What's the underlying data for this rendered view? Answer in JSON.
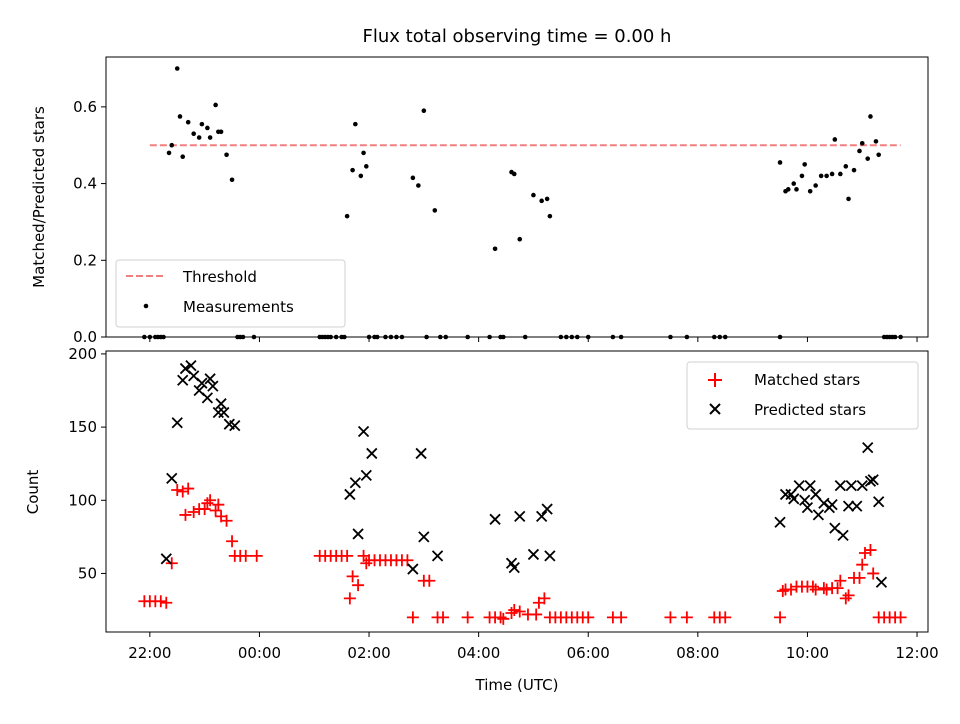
{
  "title": "Flux total observing time = 0.00 h",
  "colors": {
    "threshold": "#f08080",
    "measurements": "#000000",
    "matched": "#ff0000",
    "predicted": "#000000"
  },
  "chart_data": [
    {
      "type": "scatter",
      "panel": "top",
      "ylabel": "Matched/Predicted stars",
      "ylim": [
        0,
        0.73
      ],
      "yticks": [
        0.0,
        0.2,
        0.4,
        0.6
      ],
      "ytick_labels": [
        "0.0",
        "0.2",
        "0.4",
        "0.6"
      ],
      "grid": false,
      "legend": "lower-left",
      "threshold": {
        "name": "Threshold",
        "value": 0.5,
        "x": [
          -2.0,
          11.7
        ]
      },
      "series": [
        {
          "name": "Measurements",
          "points": [
            [
              -2.1,
              0
            ],
            [
              -2.0,
              0
            ],
            [
              -1.9,
              0
            ],
            [
              -1.85,
              0
            ],
            [
              -1.8,
              0
            ],
            [
              -1.75,
              0
            ],
            [
              -1.65,
              0.48
            ],
            [
              -1.6,
              0.5
            ],
            [
              -1.5,
              0.7
            ],
            [
              -1.45,
              0.575
            ],
            [
              -1.4,
              0.47
            ],
            [
              -1.3,
              0.56
            ],
            [
              -1.2,
              0.53
            ],
            [
              -1.1,
              0.52
            ],
            [
              -1.05,
              0.555
            ],
            [
              -0.95,
              0.545
            ],
            [
              -0.9,
              0.52
            ],
            [
              -0.8,
              0.605
            ],
            [
              -0.75,
              0.535
            ],
            [
              -0.7,
              0.535
            ],
            [
              -0.6,
              0.475
            ],
            [
              -0.5,
              0.41
            ],
            [
              -0.4,
              0
            ],
            [
              -0.35,
              0
            ],
            [
              -0.3,
              0
            ],
            [
              -0.1,
              0
            ],
            [
              1.1,
              0
            ],
            [
              1.15,
              0
            ],
            [
              1.2,
              0
            ],
            [
              1.25,
              0
            ],
            [
              1.3,
              0
            ],
            [
              1.4,
              0
            ],
            [
              1.5,
              0
            ],
            [
              1.55,
              0
            ],
            [
              1.6,
              0.315
            ],
            [
              1.7,
              0.435
            ],
            [
              1.75,
              0.555
            ],
            [
              1.85,
              0.42
            ],
            [
              1.9,
              0.48
            ],
            [
              1.95,
              0.445
            ],
            [
              2.0,
              0
            ],
            [
              2.1,
              0
            ],
            [
              2.15,
              0
            ],
            [
              2.3,
              0
            ],
            [
              2.4,
              0
            ],
            [
              2.5,
              0
            ],
            [
              2.6,
              0
            ],
            [
              2.8,
              0.415
            ],
            [
              2.9,
              0.395
            ],
            [
              3.0,
              0.59
            ],
            [
              3.05,
              0
            ],
            [
              3.2,
              0.33
            ],
            [
              3.3,
              0
            ],
            [
              3.4,
              0
            ],
            [
              3.8,
              0
            ],
            [
              4.2,
              0
            ],
            [
              4.3,
              0.23
            ],
            [
              4.4,
              0
            ],
            [
              4.45,
              0
            ],
            [
              4.6,
              0.43
            ],
            [
              4.65,
              0.425
            ],
            [
              4.75,
              0.255
            ],
            [
              4.85,
              0
            ],
            [
              5.0,
              0.37
            ],
            [
              5.15,
              0.355
            ],
            [
              5.25,
              0.36
            ],
            [
              5.3,
              0.315
            ],
            [
              5.5,
              0
            ],
            [
              5.6,
              0
            ],
            [
              5.7,
              0
            ],
            [
              5.8,
              0
            ],
            [
              6.0,
              0
            ],
            [
              6.45,
              0
            ],
            [
              6.6,
              0
            ],
            [
              7.5,
              0
            ],
            [
              7.8,
              0
            ],
            [
              8.3,
              0
            ],
            [
              8.4,
              0
            ],
            [
              8.5,
              0
            ],
            [
              9.5,
              0
            ],
            [
              9.5,
              0.455
            ],
            [
              9.6,
              0.38
            ],
            [
              9.65,
              0.385
            ],
            [
              9.75,
              0.4
            ],
            [
              9.8,
              0.385
            ],
            [
              9.9,
              0.42
            ],
            [
              9.95,
              0.45
            ],
            [
              10.05,
              0.38
            ],
            [
              10.15,
              0.395
            ],
            [
              10.25,
              0.42
            ],
            [
              10.35,
              0.42
            ],
            [
              10.45,
              0.425
            ],
            [
              10.5,
              0.515
            ],
            [
              10.6,
              0.425
            ],
            [
              10.7,
              0.445
            ],
            [
              10.75,
              0.36
            ],
            [
              10.85,
              0.435
            ],
            [
              10.95,
              0.485
            ],
            [
              11.0,
              0.505
            ],
            [
              11.1,
              0.465
            ],
            [
              11.15,
              0.575
            ],
            [
              11.25,
              0.51
            ],
            [
              11.3,
              0.475
            ],
            [
              11.4,
              0
            ],
            [
              11.45,
              0
            ],
            [
              11.5,
              0
            ],
            [
              11.55,
              0
            ],
            [
              11.6,
              0
            ],
            [
              11.7,
              0
            ]
          ]
        }
      ]
    },
    {
      "type": "scatter",
      "panel": "bottom",
      "xlabel": "Time (UTC)",
      "ylabel": "Count",
      "xlim": [
        -2.8,
        12.2
      ],
      "xticks": [
        -2,
        0,
        2,
        4,
        6,
        8,
        10,
        12
      ],
      "xtick_labels": [
        "22:00",
        "00:00",
        "02:00",
        "04:00",
        "06:00",
        "08:00",
        "10:00",
        "12:00"
      ],
      "ylim": [
        10,
        202
      ],
      "yticks": [
        50,
        100,
        150,
        200
      ],
      "ytick_labels": [
        "50",
        "100",
        "150",
        "200"
      ],
      "grid": false,
      "legend": "top-right",
      "series": [
        {
          "name": "Matched stars",
          "marker": "plus",
          "points": [
            [
              -2.1,
              31
            ],
            [
              -2.0,
              31
            ],
            [
              -1.9,
              31
            ],
            [
              -1.8,
              31
            ],
            [
              -1.7,
              30
            ],
            [
              -1.6,
              57
            ],
            [
              -1.5,
              107
            ],
            [
              -1.4,
              106
            ],
            [
              -1.35,
              90
            ],
            [
              -1.3,
              108
            ],
            [
              -1.2,
              92
            ],
            [
              -1.1,
              94
            ],
            [
              -1.0,
              94
            ],
            [
              -0.95,
              98
            ],
            [
              -0.9,
              100
            ],
            [
              -0.8,
              93
            ],
            [
              -0.75,
              97
            ],
            [
              -0.7,
              89
            ],
            [
              -0.6,
              86
            ],
            [
              -0.5,
              72
            ],
            [
              -0.45,
              62
            ],
            [
              -0.35,
              62
            ],
            [
              -0.25,
              62
            ],
            [
              -0.05,
              62
            ],
            [
              1.1,
              62
            ],
            [
              1.2,
              62
            ],
            [
              1.3,
              62
            ],
            [
              1.4,
              62
            ],
            [
              1.5,
              62
            ],
            [
              1.6,
              62
            ],
            [
              1.65,
              33
            ],
            [
              1.7,
              48
            ],
            [
              1.8,
              42
            ],
            [
              1.9,
              62
            ],
            [
              1.95,
              57
            ],
            [
              2.0,
              59
            ],
            [
              2.1,
              59
            ],
            [
              2.2,
              59
            ],
            [
              2.3,
              59
            ],
            [
              2.4,
              59
            ],
            [
              2.5,
              59
            ],
            [
              2.6,
              59
            ],
            [
              2.7,
              59
            ],
            [
              2.8,
              20
            ],
            [
              3.0,
              45
            ],
            [
              3.1,
              45
            ],
            [
              3.25,
              20
            ],
            [
              3.35,
              20
            ],
            [
              3.8,
              20
            ],
            [
              4.2,
              20
            ],
            [
              4.3,
              20
            ],
            [
              4.4,
              20
            ],
            [
              4.45,
              19
            ],
            [
              4.6,
              23
            ],
            [
              4.65,
              25
            ],
            [
              4.75,
              24
            ],
            [
              4.9,
              22
            ],
            [
              5.05,
              22
            ],
            [
              5.1,
              30
            ],
            [
              5.2,
              33
            ],
            [
              5.3,
              20
            ],
            [
              5.4,
              20
            ],
            [
              5.5,
              20
            ],
            [
              5.6,
              20
            ],
            [
              5.7,
              20
            ],
            [
              5.8,
              20
            ],
            [
              5.9,
              20
            ],
            [
              6.0,
              20
            ],
            [
              6.45,
              20
            ],
            [
              6.6,
              20
            ],
            [
              7.5,
              20
            ],
            [
              7.8,
              20
            ],
            [
              8.3,
              20
            ],
            [
              8.4,
              20
            ],
            [
              8.5,
              20
            ],
            [
              9.5,
              20
            ],
            [
              9.55,
              38
            ],
            [
              9.6,
              39
            ],
            [
              9.7,
              39
            ],
            [
              9.8,
              41
            ],
            [
              9.9,
              41
            ],
            [
              10.0,
              41
            ],
            [
              10.1,
              41
            ],
            [
              10.15,
              39
            ],
            [
              10.3,
              40
            ],
            [
              10.35,
              39
            ],
            [
              10.45,
              40
            ],
            [
              10.55,
              40
            ],
            [
              10.6,
              45
            ],
            [
              10.7,
              33
            ],
            [
              10.75,
              35
            ],
            [
              10.85,
              47
            ],
            [
              10.95,
              47
            ],
            [
              11.0,
              56
            ],
            [
              11.05,
              64
            ],
            [
              11.15,
              66
            ],
            [
              11.2,
              50
            ],
            [
              11.3,
              20
            ],
            [
              11.4,
              20
            ],
            [
              11.5,
              20
            ],
            [
              11.6,
              20
            ],
            [
              11.7,
              20
            ]
          ]
        },
        {
          "name": "Predicted stars",
          "marker": "x",
          "points": [
            [
              -1.7,
              60
            ],
            [
              -1.6,
              115
            ],
            [
              -1.5,
              153
            ],
            [
              -1.4,
              182
            ],
            [
              -1.35,
              190
            ],
            [
              -1.25,
              192
            ],
            [
              -1.2,
              185
            ],
            [
              -1.1,
              175
            ],
            [
              -1.05,
              180
            ],
            [
              -0.95,
              170
            ],
            [
              -0.9,
              183
            ],
            [
              -0.85,
              178
            ],
            [
              -0.75,
              160
            ],
            [
              -0.7,
              166
            ],
            [
              -0.65,
              160
            ],
            [
              -0.55,
              152
            ],
            [
              -0.45,
              151
            ],
            [
              1.65,
              104
            ],
            [
              1.75,
              112
            ],
            [
              1.8,
              77
            ],
            [
              1.9,
              147
            ],
            [
              1.95,
              117
            ],
            [
              2.05,
              132
            ],
            [
              2.8,
              53
            ],
            [
              2.95,
              132
            ],
            [
              3.0,
              75
            ],
            [
              3.25,
              62
            ],
            [
              4.3,
              87
            ],
            [
              4.6,
              57
            ],
            [
              4.65,
              54
            ],
            [
              4.75,
              89
            ],
            [
              5.0,
              63
            ],
            [
              5.15,
              89
            ],
            [
              5.25,
              94
            ],
            [
              5.3,
              62
            ],
            [
              9.5,
              85
            ],
            [
              9.6,
              104
            ],
            [
              9.7,
              104
            ],
            [
              9.75,
              101
            ],
            [
              9.85,
              110
            ],
            [
              9.95,
              100
            ],
            [
              10.0,
              95
            ],
            [
              10.05,
              110
            ],
            [
              10.15,
              104
            ],
            [
              10.2,
              90
            ],
            [
              10.3,
              98
            ],
            [
              10.4,
              95
            ],
            [
              10.45,
              97
            ],
            [
              10.5,
              81
            ],
            [
              10.6,
              110
            ],
            [
              10.65,
              76
            ],
            [
              10.75,
              96
            ],
            [
              10.8,
              110
            ],
            [
              10.9,
              96
            ],
            [
              11.0,
              110
            ],
            [
              11.1,
              136
            ],
            [
              11.15,
              113
            ],
            [
              11.2,
              114
            ],
            [
              11.3,
              99
            ],
            [
              11.35,
              44
            ]
          ]
        }
      ]
    }
  ]
}
